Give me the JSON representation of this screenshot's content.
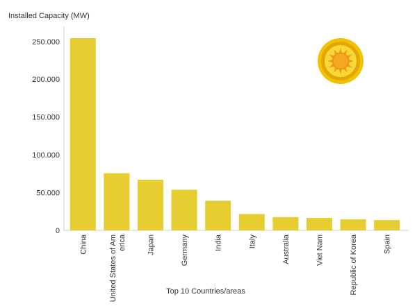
{
  "chart_data": {
    "type": "bar",
    "ylabel": "Installed Capacity (MW)",
    "xlabel": "Top 10 Countries/areas",
    "categories": [
      "China",
      "United States of America",
      "Japan",
      "Germany",
      "India",
      "Italy",
      "Australia",
      "Viet Nam",
      "Republic of Korea",
      "Spain"
    ],
    "category_label_lines": [
      [
        "China"
      ],
      [
        "United States of Am",
        "erica"
      ],
      [
        "Japan"
      ],
      [
        "Germany"
      ],
      [
        "India"
      ],
      [
        "Italy"
      ],
      [
        "Australia"
      ],
      [
        "Viet Nam"
      ],
      [
        "Republic of Korea"
      ],
      [
        "Spain"
      ]
    ],
    "values": [
      254355,
      75572,
      67000,
      53783,
      39211,
      21600,
      17627,
      16504,
      14575,
      13665
    ],
    "ylim": [
      0,
      270000
    ],
    "yticks": [
      0,
      50000,
      100000,
      150000,
      200000,
      250000
    ],
    "ytick_labels": [
      "0",
      "50.000",
      "100.000",
      "150.000",
      "200.000",
      "250.000"
    ],
    "bar_color": "#e6cd32",
    "grid": false,
    "legend": "none"
  },
  "decoration": {
    "icon": "sun-badge-icon",
    "colors": {
      "outer": "#f2c200",
      "ring": "#e0a800",
      "inner": "#f7d63a",
      "sun": "#f39c12",
      "core": "#f5a623"
    }
  }
}
